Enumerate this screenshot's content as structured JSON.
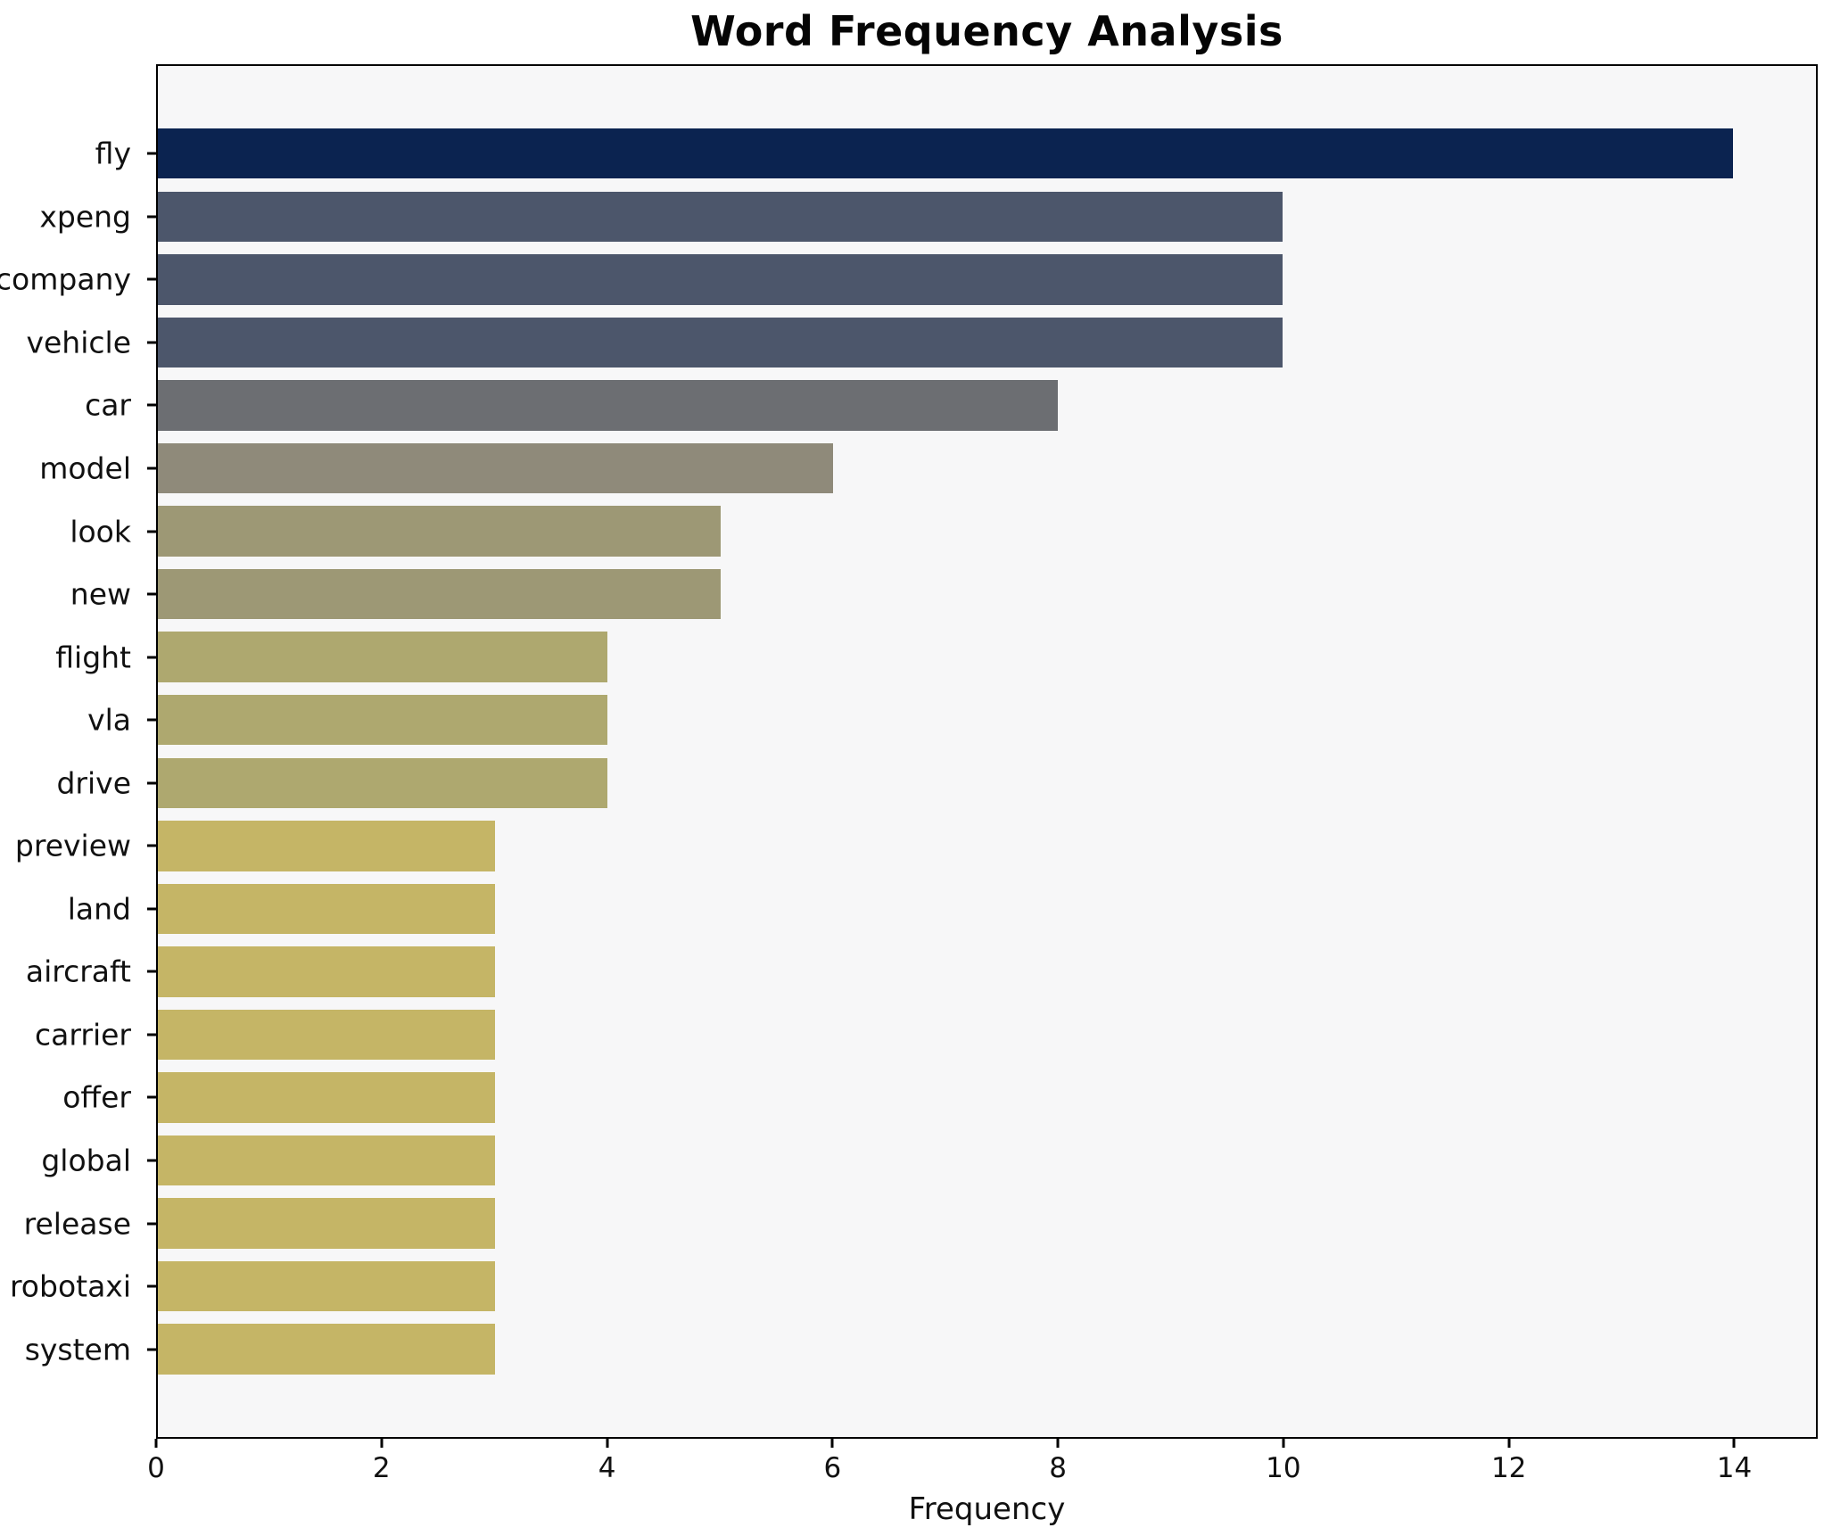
{
  "title": "Word Frequency Analysis",
  "chart_data": {
    "type": "bar",
    "orientation": "horizontal",
    "title": "Word Frequency Analysis",
    "xlabel": "Frequency",
    "ylabel": "",
    "categories": [
      "fly",
      "xpeng",
      "company",
      "vehicle",
      "car",
      "model",
      "look",
      "new",
      "flight",
      "vla",
      "drive",
      "preview",
      "land",
      "aircraft",
      "carrier",
      "offer",
      "global",
      "release",
      "robotaxi",
      "system"
    ],
    "values": [
      14,
      10,
      10,
      10,
      8,
      6,
      5,
      5,
      4,
      4,
      4,
      3,
      3,
      3,
      3,
      3,
      3,
      3,
      3,
      3
    ],
    "bar_colors": [
      "#0b2350",
      "#4c566b",
      "#4c566b",
      "#4c566b",
      "#6c6e72",
      "#8f8a7a",
      "#9d9875",
      "#9d9875",
      "#aea86f",
      "#aea86f",
      "#aea86f",
      "#c5b566",
      "#c5b566",
      "#c5b566",
      "#c5b566",
      "#c5b566",
      "#c5b566",
      "#c5b566",
      "#c5b566",
      "#c5b566"
    ],
    "x_ticks": [
      0,
      2,
      4,
      6,
      8,
      10,
      12,
      14
    ],
    "xlim": [
      0,
      14.74
    ],
    "grid": false,
    "legend": "none",
    "plot_background": "#f7f7f8",
    "figure_background": "#ffffff",
    "spine_color": "#000000"
  }
}
